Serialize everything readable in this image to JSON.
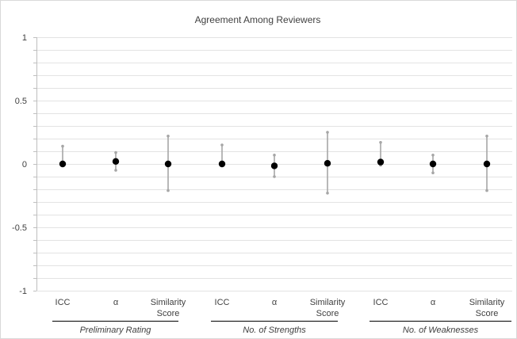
{
  "chart_data": {
    "type": "scatter",
    "title": "Agreement Among Reviewers",
    "ylim": [
      -1,
      1
    ],
    "y_ticks": [
      1,
      0.5,
      0,
      -0.5,
      -1
    ],
    "y_tick_labels": [
      "1",
      "0.5",
      "0",
      "-0.5",
      "-1"
    ],
    "grid": true,
    "groups": [
      {
        "label": "Preliminary Rating",
        "points": [
          {
            "category": [
              "ICC"
            ],
            "value": 0.0,
            "lower": -0.01,
            "upper": 0.14
          },
          {
            "category": [
              "α"
            ],
            "value": 0.02,
            "lower": -0.05,
            "upper": 0.09
          },
          {
            "category": [
              "Similarity",
              "Score"
            ],
            "value": 0.0,
            "lower": -0.21,
            "upper": 0.22
          }
        ]
      },
      {
        "label": "No. of Strengths",
        "points": [
          {
            "category": [
              "ICC"
            ],
            "value": 0.0,
            "lower": -0.01,
            "upper": 0.15
          },
          {
            "category": [
              "α"
            ],
            "value": -0.015,
            "lower": -0.1,
            "upper": 0.07
          },
          {
            "category": [
              "Similarity",
              "Score"
            ],
            "value": 0.005,
            "lower": -0.23,
            "upper": 0.25
          }
        ]
      },
      {
        "label": "No. of Weaknesses",
        "points": [
          {
            "category": [
              "ICC"
            ],
            "value": 0.015,
            "lower": -0.01,
            "upper": 0.17
          },
          {
            "category": [
              "α"
            ],
            "value": 0.0,
            "lower": -0.07,
            "upper": 0.07
          },
          {
            "category": [
              "Similarity",
              "Score"
            ],
            "value": 0.0,
            "lower": -0.21,
            "upper": 0.22
          }
        ]
      }
    ],
    "colors": {
      "marker": "#000000",
      "error_bar": "#a6a6a6",
      "grid": "#e3e3e3",
      "axis": "#bfbfbf",
      "text": "#404040"
    }
  }
}
